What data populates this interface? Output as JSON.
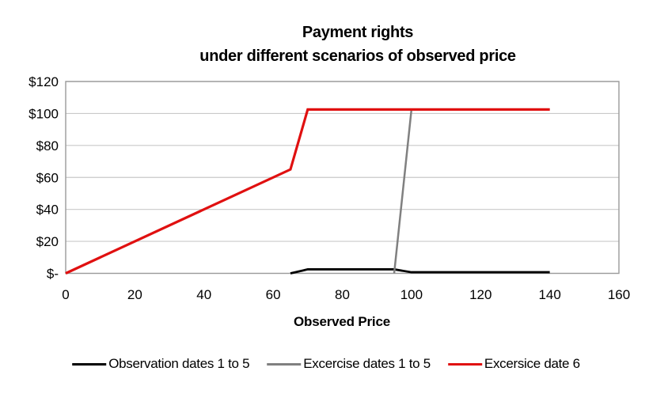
{
  "title": {
    "line1": "Payment rights",
    "line2": "under different scenarios of observed price"
  },
  "chart_data": {
    "type": "line",
    "title": "Payment rights under different scenarios of observed price",
    "xlabel": "Observed Price",
    "ylabel": "",
    "xlim": [
      0,
      160
    ],
    "ylim": [
      0,
      120
    ],
    "x_ticks": [
      0,
      20,
      40,
      60,
      80,
      100,
      120,
      140,
      160
    ],
    "x_tick_labels": [
      "0",
      "20",
      "40",
      "60",
      "80",
      "100",
      "120",
      "140",
      "160"
    ],
    "y_ticks": [
      0,
      20,
      40,
      60,
      80,
      100,
      120
    ],
    "y_tick_labels": [
      "$-",
      "$20",
      "$40",
      "$60",
      "$80",
      "$100",
      "$120"
    ],
    "grid": "horizontal",
    "legend_position": "bottom",
    "series": [
      {
        "name": "Observation dates 1 to 5",
        "color": "#000000",
        "stroke_width": 2.8,
        "points": [
          [
            65,
            0
          ],
          [
            70,
            2.5
          ],
          [
            95,
            2.5
          ],
          [
            100,
            0.7
          ],
          [
            140,
            0.7
          ]
        ]
      },
      {
        "name": "Excercise dates 1 to 5",
        "color": "#808080",
        "stroke_width": 2.5,
        "points": [
          [
            95,
            0
          ],
          [
            100,
            102.5
          ],
          [
            140,
            102.5
          ]
        ]
      },
      {
        "name": "Excersice date 6",
        "color": "#e01010",
        "stroke_width": 3.2,
        "points": [
          [
            0,
            0
          ],
          [
            65,
            65
          ],
          [
            70,
            102.5
          ],
          [
            140,
            102.5
          ]
        ]
      }
    ]
  },
  "colors": {
    "grid": "#c9c9c9",
    "border": "#9a9a9a",
    "text": "#000000",
    "background": "#ffffff"
  }
}
